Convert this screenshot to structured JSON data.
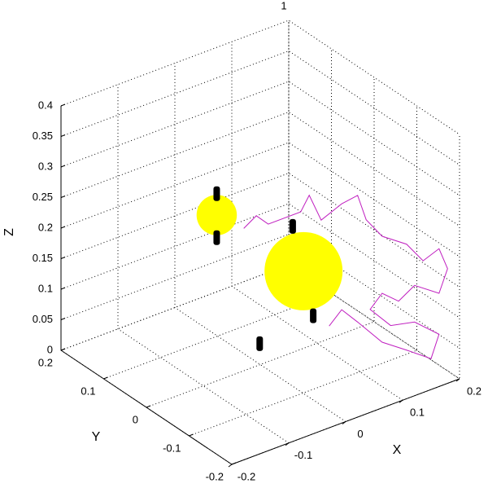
{
  "chart_data": {
    "type": "scatter3d",
    "title": "1",
    "xlabel": "X",
    "ylabel": "Y",
    "zlabel": "Z",
    "xlim": [
      -0.2,
      0.2
    ],
    "ylim": [
      -0.2,
      0.2
    ],
    "zlim": [
      0,
      0.4
    ],
    "xticks": [
      -0.2,
      -0.1,
      0,
      0.1,
      0.2
    ],
    "yticks": [
      -0.2,
      -0.1,
      0,
      0.1,
      0.2
    ],
    "zticks": [
      0,
      0.05,
      0.1,
      0.15,
      0.2,
      0.25,
      0.3,
      0.35,
      0.4
    ],
    "grid": true,
    "series": [
      {
        "marker": "sphere",
        "color": "#ffff00",
        "x": [
          0.103,
          -0.003
        ],
        "y": [
          0.036,
          0.098
        ],
        "z": [
          0.1,
          0.2
        ],
        "sizes": [
          0.064,
          0.033
        ]
      },
      {
        "marker": "thruster",
        "color": "#000000",
        "x": [
          0.014,
          -0.003,
          -0.003,
          0.084,
          0.12
        ],
        "y": [
          0.02,
          0.098,
          0.098,
          0.036,
          0.036
        ],
        "z": [
          0.02,
          0.235,
          0.163,
          0.18,
          0.021
        ]
      },
      {
        "marker": "line",
        "color": "#c020c0",
        "x": [
          -0.029,
          -0.007,
          0.014,
          0.071,
          0.086,
          0.107,
          0.143,
          0.171,
          0.186,
          0.139,
          0.182,
          0.151,
          0.179,
          0.194,
          0.179,
          0.136,
          0.108,
          0.079,
          0.058,
          0.094,
          0.136,
          0.179,
          0.165,
          0.122,
          0.079,
          0.036,
          0.008,
          -0.014
        ],
        "y": [
          0,
          0,
          0,
          0,
          0,
          0,
          0,
          0,
          0,
          -0.1,
          -0.1,
          -0.18,
          -0.18,
          -0.18,
          -0.18,
          -0.18,
          -0.18,
          -0.18,
          -0.18,
          -0.18,
          -0.18,
          -0.18,
          -0.18,
          -0.18,
          -0.18,
          -0.18,
          -0.18,
          -0.18
        ],
        "z": [
          0.233,
          0.246,
          0.225,
          0.225,
          0.247,
          0.199,
          0.213,
          0.217,
          0.172,
          0.208,
          0.18,
          0.201,
          0.211,
          0.173,
          0.138,
          0.166,
          0.15,
          0.173,
          0.154,
          0.115,
          0.106,
          0.071,
          0.036,
          0.065,
          0.093,
          0.141,
          0.171,
          0.152
        ]
      }
    ]
  }
}
